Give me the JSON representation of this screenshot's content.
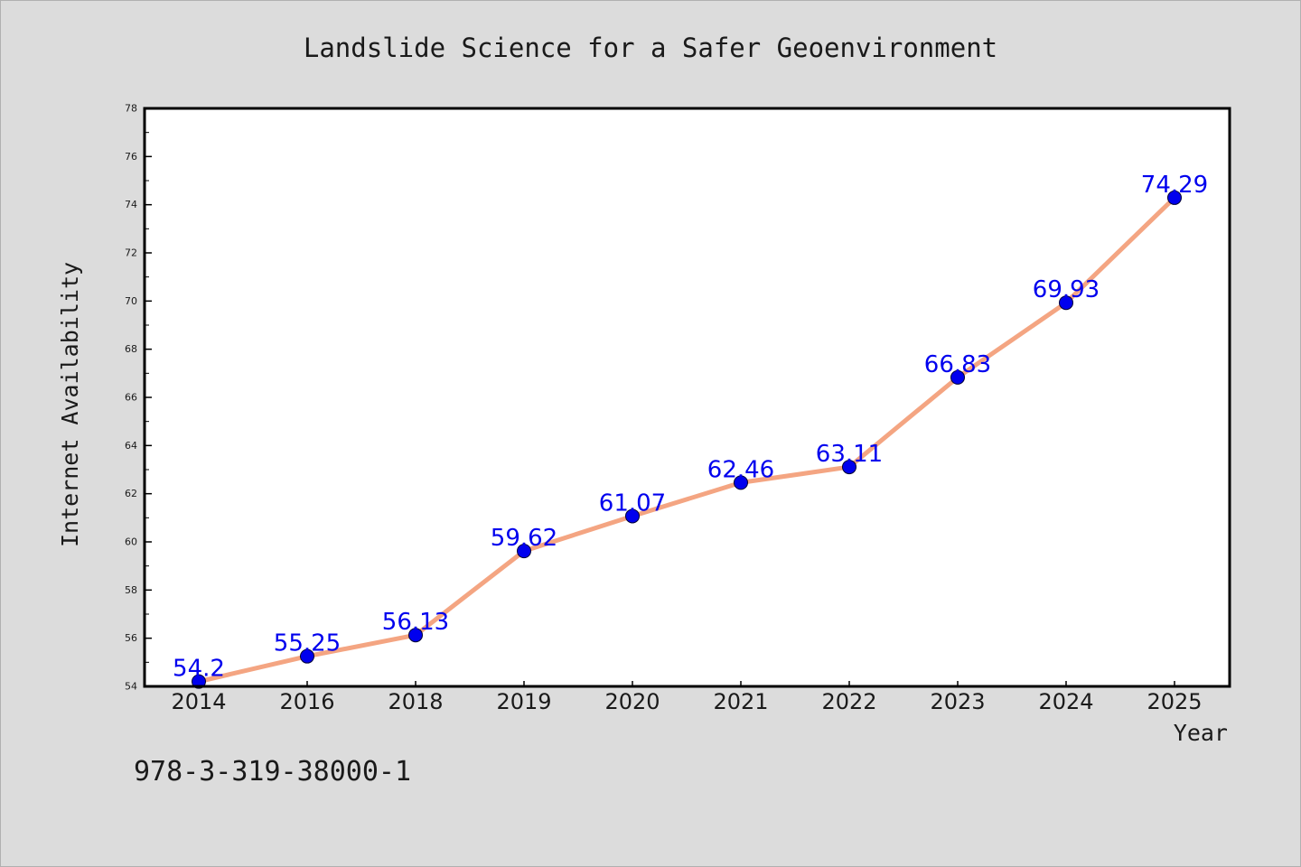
{
  "chart_data": {
    "type": "line",
    "title": "Landslide Science for a Safer Geoenvironment",
    "xlabel": "Year",
    "ylabel": "Internet Availability",
    "categories": [
      "2014",
      "2016",
      "2018",
      "2019",
      "2020",
      "2021",
      "2022",
      "2023",
      "2024",
      "2025"
    ],
    "values": [
      54.2,
      55.25,
      56.13,
      59.62,
      61.07,
      62.46,
      63.11,
      66.83,
      69.93,
      74.29
    ],
    "data_labels": [
      "54.2",
      "55.25",
      "56.13",
      "59.62",
      "61.07",
      "62.46",
      "63.11",
      "66.83",
      "69.93",
      "74.29"
    ],
    "ylim": [
      54,
      78
    ],
    "yticks": [
      "54",
      "56",
      "58",
      "60",
      "62",
      "64",
      "66",
      "68",
      "70",
      "72",
      "74",
      "76",
      "78"
    ],
    "grid": false,
    "colors": {
      "line": "#f4a582",
      "marker": "#0000ee",
      "label": "#0000ee",
      "background": "#dcdcdc",
      "plot_background": "#ffffff"
    }
  },
  "footer": {
    "isbn": "978-3-319-38000-1"
  }
}
